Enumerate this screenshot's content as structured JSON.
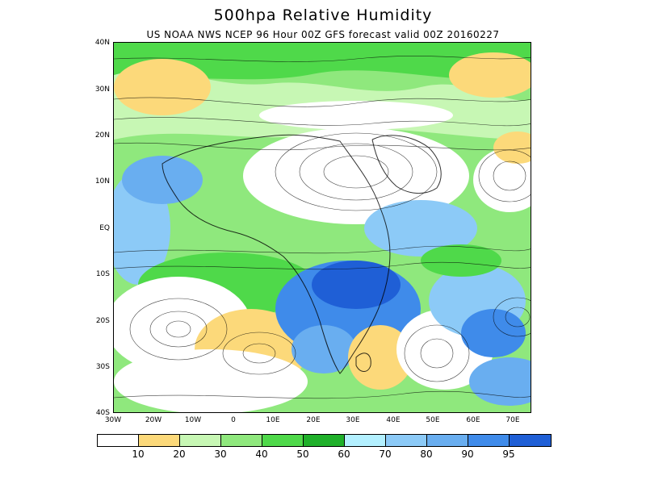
{
  "title": "500hpa Relative Humidity",
  "subtitle": "US NOAA NWS NCEP 96 Hour 00Z GFS forecast valid 00Z 20160227",
  "lat_labels": [
    "40N",
    "30N",
    "20N",
    "10N",
    "EQ",
    "10S",
    "20S",
    "30S",
    "40S"
  ],
  "lon_labels": [
    "30W",
    "20W",
    "10W",
    "0",
    "10E",
    "20E",
    "30E",
    "40E",
    "50E",
    "60E",
    "70E"
  ],
  "colorbar": {
    "colors": [
      "#ffffff",
      "#fcd97a",
      "#c7f7b4",
      "#8fe87d",
      "#4fd94a",
      "#1fb02a",
      "#b3f0ff",
      "#8ccaf7",
      "#69aef0",
      "#3f8bea",
      "#1f5fd6"
    ],
    "labels": [
      "10",
      "20",
      "30",
      "40",
      "50",
      "60",
      "70",
      "80",
      "90",
      "95"
    ]
  }
}
